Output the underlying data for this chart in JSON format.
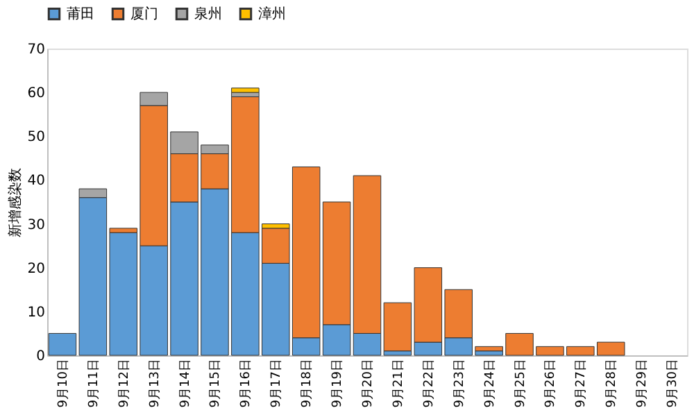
{
  "chart_data": {
    "type": "bar",
    "stacked": true,
    "ylabel": "新增感染数",
    "categories": [
      "9月10日",
      "9月11日",
      "9月12日",
      "9月13日",
      "9月14日",
      "9月15日",
      "9月16日",
      "9月17日",
      "9月18日",
      "9月19日",
      "9月20日",
      "9月21日",
      "9月22日",
      "9月23日",
      "9月24日",
      "9月25日",
      "9月26日",
      "9月27日",
      "9月28日",
      "9月29日",
      "9月30日"
    ],
    "series": [
      {
        "name": "莆田",
        "color": "#5b9bd5",
        "values": [
          5,
          36,
          28,
          25,
          35,
          38,
          28,
          21,
          4,
          7,
          5,
          1,
          3,
          4,
          1,
          0,
          0,
          0,
          0,
          0,
          0
        ]
      },
      {
        "name": "厦门",
        "color": "#ed7d31",
        "values": [
          0,
          0,
          1,
          32,
          11,
          8,
          31,
          8,
          39,
          28,
          36,
          11,
          17,
          11,
          1,
          5,
          2,
          2,
          3,
          0,
          0
        ]
      },
      {
        "name": "泉州",
        "color": "#a5a5a5",
        "values": [
          0,
          2,
          0,
          3,
          5,
          2,
          1,
          0,
          0,
          0,
          0,
          0,
          0,
          0,
          0,
          0,
          0,
          0,
          0,
          0,
          0
        ]
      },
      {
        "name": "漳州",
        "color": "#ffc000",
        "values": [
          0,
          0,
          0,
          0,
          0,
          0,
          1,
          1,
          0,
          0,
          0,
          0,
          0,
          0,
          0,
          0,
          0,
          0,
          0,
          0,
          0
        ]
      }
    ],
    "ylim": [
      0,
      70
    ],
    "yticks": [
      0,
      10,
      20,
      30,
      40,
      50,
      60,
      70
    ],
    "grid": false,
    "legend": "top"
  }
}
